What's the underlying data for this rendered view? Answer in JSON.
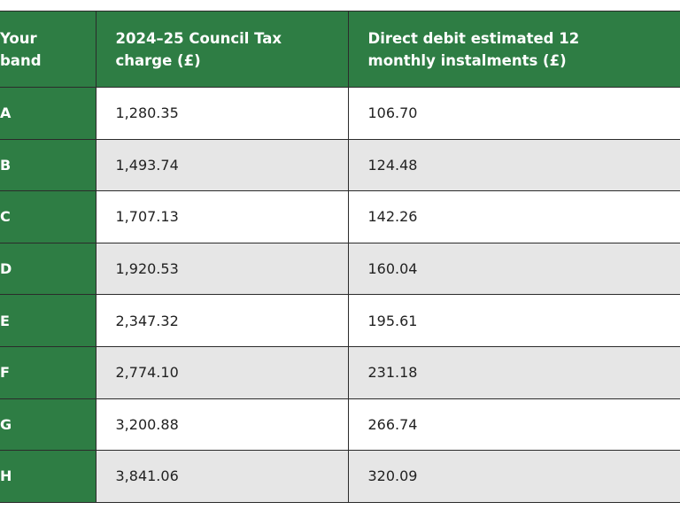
{
  "table": {
    "header": [
      "Your band",
      "2024–25 Council Tax charge (£)",
      "Direct debit estimated 12 monthly instalments (£)"
    ],
    "rows": [
      [
        "A",
        "1,280.35",
        "106.70"
      ],
      [
        "B",
        "1,493.74",
        "124.48"
      ],
      [
        "C",
        "1,707.13",
        "142.26"
      ],
      [
        "D",
        "1,920.53",
        "160.04"
      ],
      [
        "E",
        "2,347.32",
        "195.61"
      ],
      [
        "F",
        "2,774.10",
        "231.18"
      ],
      [
        "G",
        "3,200.88",
        "266.74"
      ],
      [
        "H",
        "3,841.06",
        "320.09"
      ]
    ]
  }
}
